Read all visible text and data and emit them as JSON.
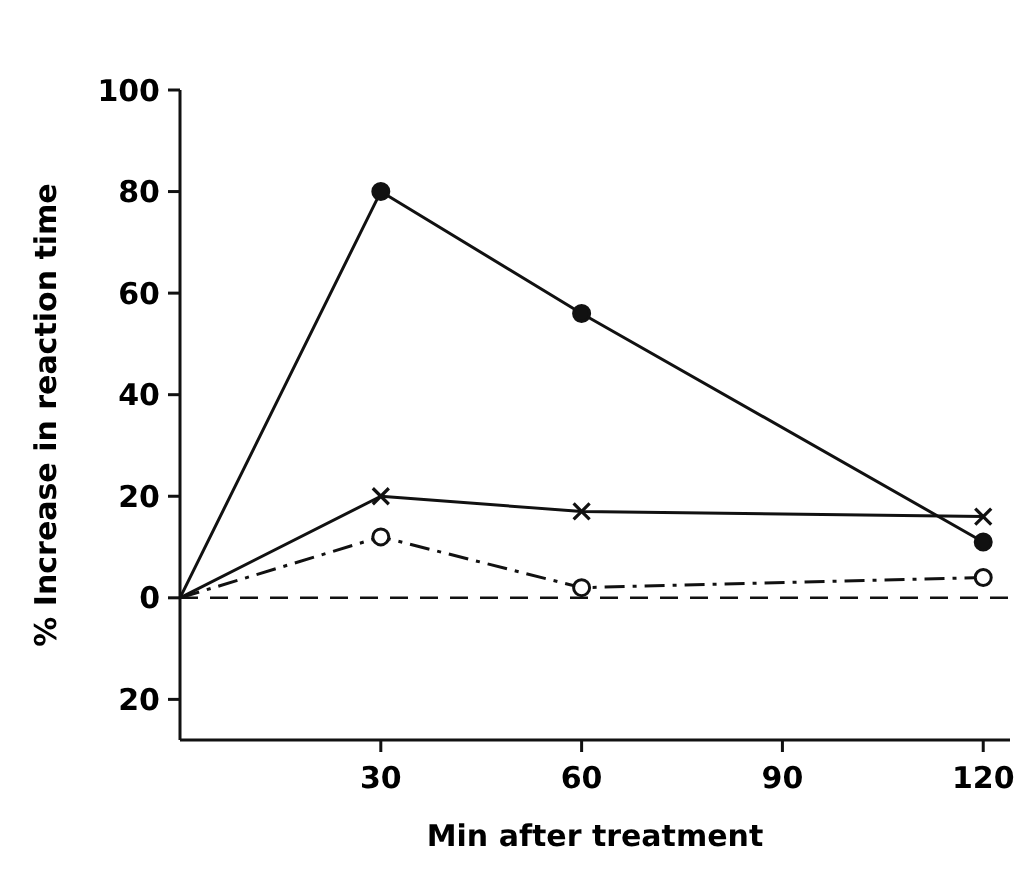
{
  "chart_data": {
    "type": "line",
    "xlabel": "Min after treatment",
    "ylabel": "% Increase in reaction time",
    "x": [
      0,
      30,
      60,
      120
    ],
    "series": [
      {
        "color": "#111111",
        "values": [
          0,
          80,
          56,
          11
        ],
        "marker": "circle",
        "line_style": "solid"
      },
      {
        "color": "#111111",
        "values": [
          0,
          20,
          17,
          16
        ],
        "marker": "cross",
        "line_style": "solid"
      },
      {
        "color": "#111111",
        "values": [
          0,
          12,
          2,
          4
        ],
        "marker": "circle",
        "line_style": "dashdot"
      }
    ],
    "xlim": [
      0,
      124
    ],
    "xticks": [
      30,
      60,
      90,
      120
    ],
    "ylim": [
      -28,
      100
    ],
    "yticks": [
      {
        "value": -20,
        "label": "20"
      },
      0,
      20,
      40,
      60,
      80,
      100
    ],
    "ref_lines": [
      {
        "axis": "y",
        "value": 0,
        "line_style": "dashed",
        "color": "#111111"
      }
    ],
    "grid": false
  }
}
